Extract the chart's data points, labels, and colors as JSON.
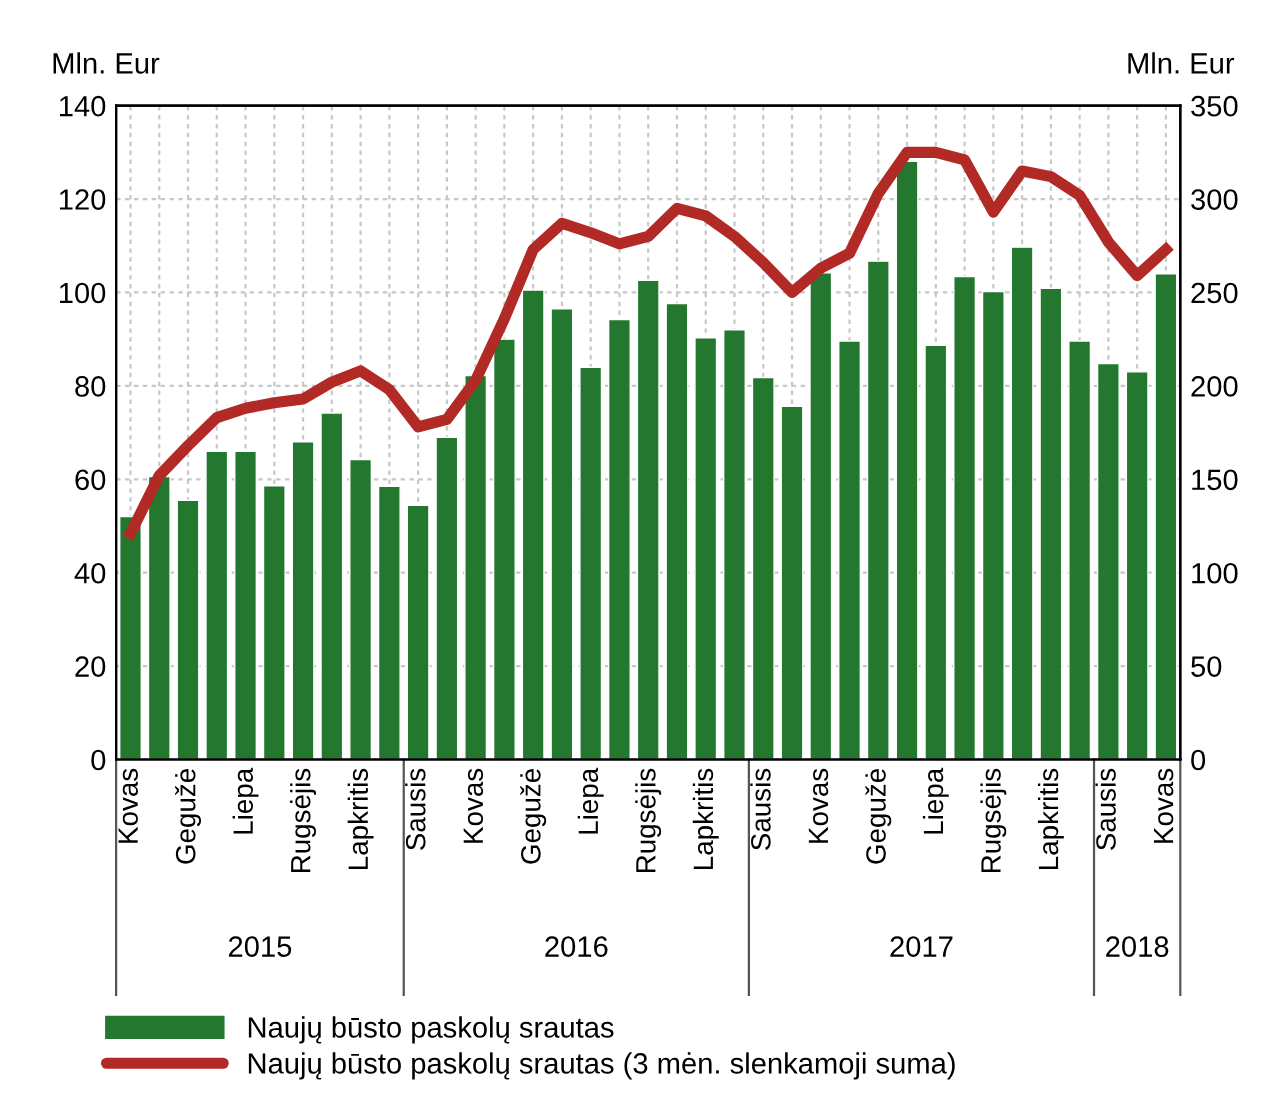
{
  "chart_data": {
    "type": "bar",
    "categories": [
      "Kovas",
      null,
      "Gegužė",
      null,
      "Liepa",
      null,
      "Rugsėjis",
      null,
      "Lapkritis",
      null,
      "Sausis",
      null,
      "Kovas",
      null,
      "Gegužė",
      null,
      "Liepa",
      null,
      "Rugsėjis",
      null,
      "Lapkritis",
      null,
      "Sausis",
      null,
      "Kovas",
      null,
      "Gegužė",
      null,
      "Liepa",
      null,
      "Rugsėjis",
      null,
      "Lapkritis",
      null,
      "Sausis",
      null,
      "Kovas"
    ],
    "series": [
      {
        "name": "Naujų būsto paskolų srautas",
        "color": "#23772f",
        "values": [
          52,
          60.6,
          55.5,
          66,
          66,
          58.6,
          68,
          74.2,
          64.2,
          58.5,
          54.4,
          69,
          82.2,
          90,
          100.5,
          96.5,
          84,
          94.2,
          102.6,
          97.6,
          90.3,
          92,
          81.8,
          75.6,
          104.2,
          89.6,
          106.7,
          128.1,
          88.7,
          103.4,
          100.2,
          109.7,
          100.9,
          89.6,
          84.8,
          83,
          104
        ]
      },
      {
        "name": "Naujų būsto paskolų srautas (3 mėn. slenkamoji suma)",
        "type": "line",
        "axis": "y2",
        "color": "#b22a25",
        "values": [
          121,
          152,
          168,
          183,
          188,
          191,
          193,
          202,
          208,
          198,
          178,
          182,
          203,
          236,
          273,
          287,
          282,
          276,
          280,
          295,
          291,
          280,
          266,
          250,
          263,
          271,
          303,
          325,
          325,
          321,
          293,
          315,
          312,
          302,
          277,
          259,
          273
        ]
      }
    ],
    "ylabel": "Mln. Eur",
    "y2label": "Mln. Eur",
    "ylim": [
      0,
      140
    ],
    "yticks": [
      0,
      20,
      40,
      60,
      80,
      100,
      120,
      140
    ],
    "y2lim": [
      0,
      350
    ],
    "y2ticks": [
      0,
      50,
      100,
      150,
      200,
      250,
      300,
      350
    ],
    "annotations": [
      "2015",
      "2016",
      "2017",
      "2018"
    ],
    "grid": true,
    "legend": "bottom",
    "marker": "none",
    "line_style": "solid"
  }
}
